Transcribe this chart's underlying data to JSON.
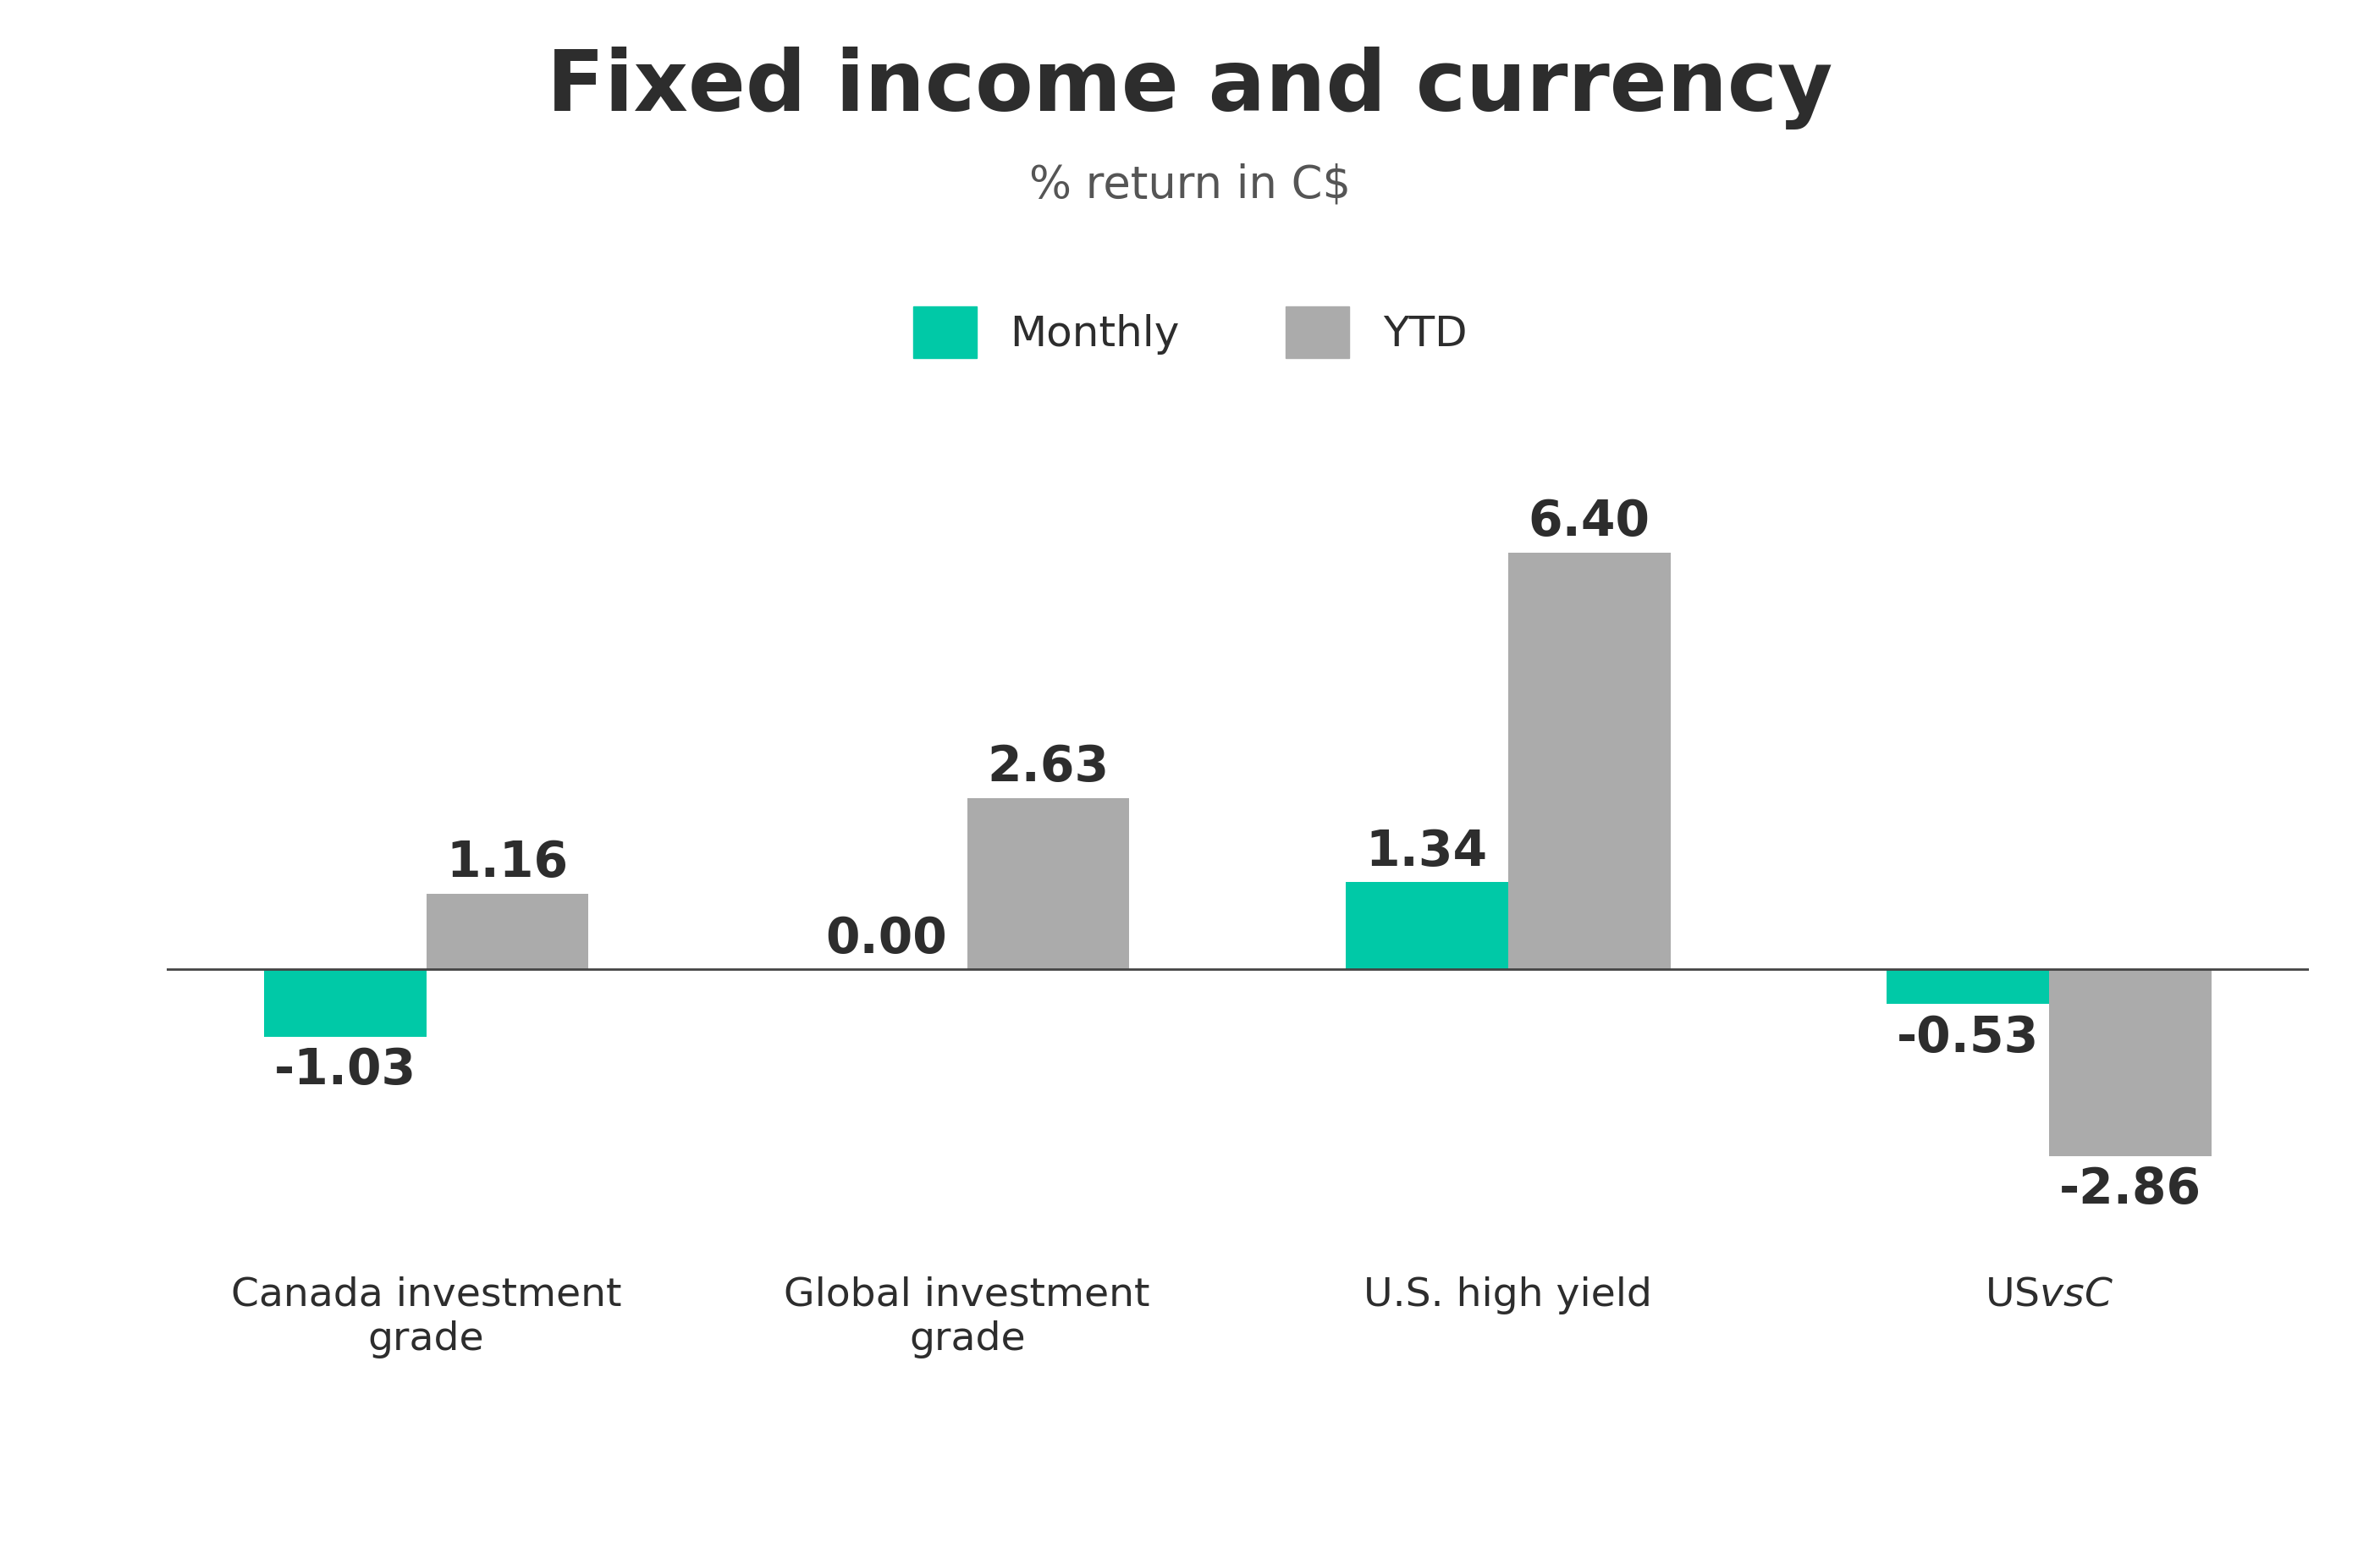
{
  "title": "Fixed income and currency",
  "subtitle": "% return in C$",
  "categories": [
    "Canada investment\ngrade",
    "Global investment\ngrade",
    "U.S. high yield",
    "US$ vs C$"
  ],
  "monthly_values": [
    -1.03,
    0.0,
    1.34,
    -0.53
  ],
  "ytd_values": [
    1.16,
    2.63,
    6.4,
    -2.86
  ],
  "monthly_color": "#00C9A7",
  "ytd_color": "#ABABAB",
  "title_color": "#2d2d2d",
  "subtitle_color": "#555555",
  "label_color": "#2d2d2d",
  "bar_width": 0.3,
  "background_color": "#ffffff",
  "title_fontsize": 72,
  "subtitle_fontsize": 38,
  "legend_fontsize": 36,
  "bar_label_fontsize": 42,
  "xlabel_fontsize": 34,
  "ylim": [
    -4.2,
    8.2
  ]
}
